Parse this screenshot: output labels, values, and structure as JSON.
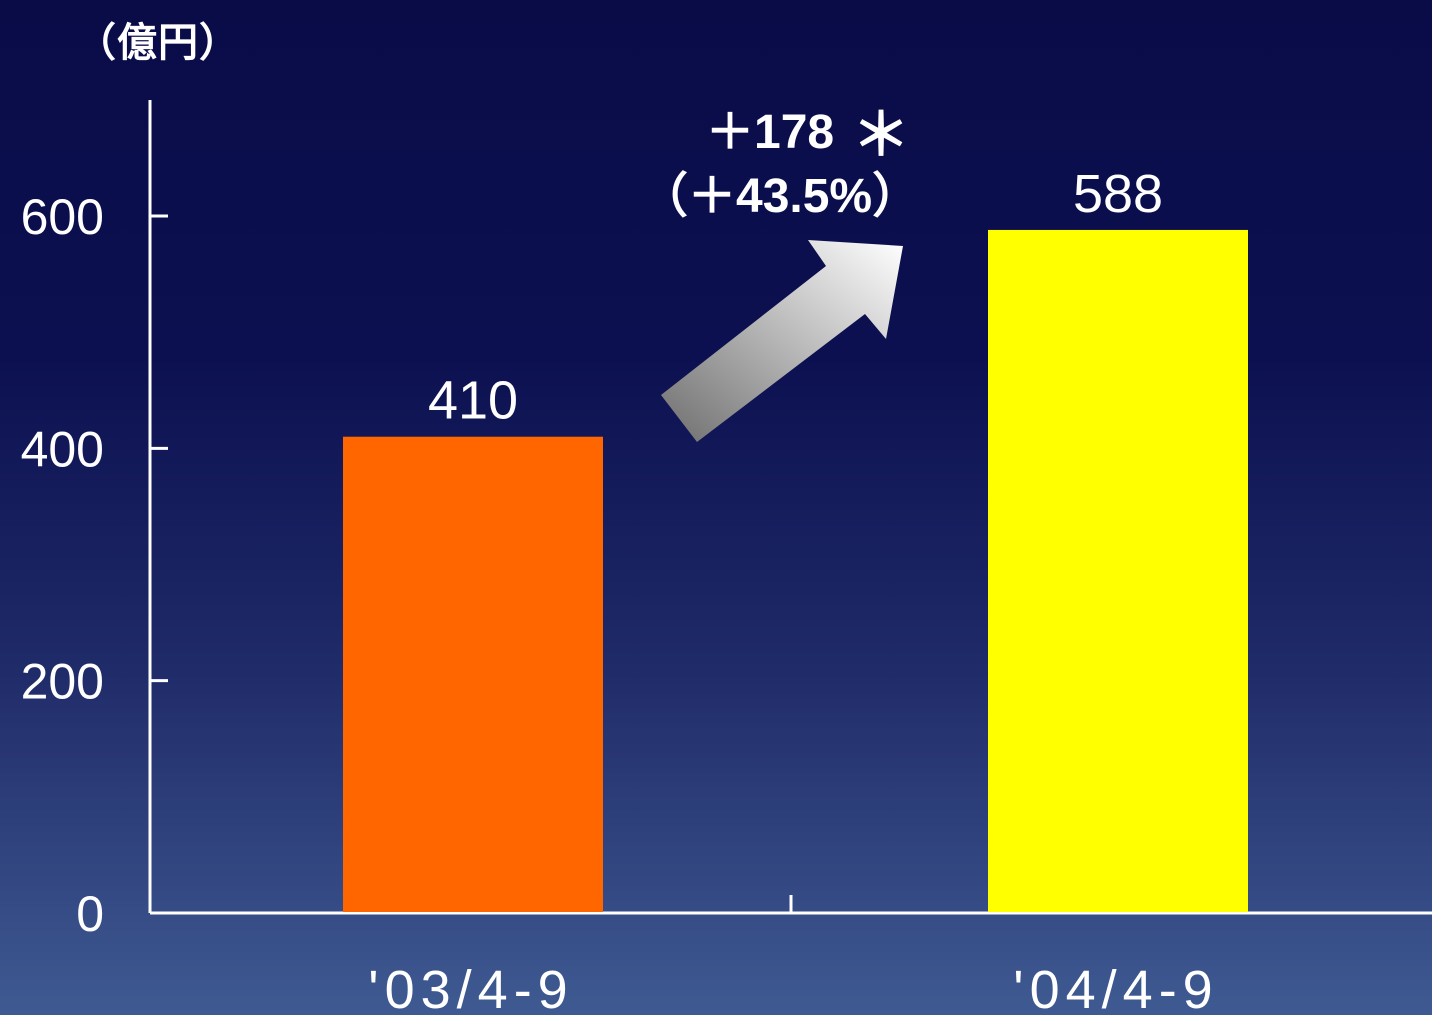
{
  "chart_data": {
    "type": "bar",
    "unit_label": "（億円）",
    "categories": [
      "'03/4-9",
      "'04/4-9"
    ],
    "values": [
      410,
      588
    ],
    "bar_colors": [
      "#ff6600",
      "#ffff00"
    ],
    "ylim": [
      0,
      600
    ],
    "yticks": [
      0,
      200,
      400,
      600
    ],
    "grid": false,
    "annotation": {
      "change_abs": "＋178",
      "asterisk": "＊",
      "change_pct": "（＋43.5%）"
    }
  }
}
